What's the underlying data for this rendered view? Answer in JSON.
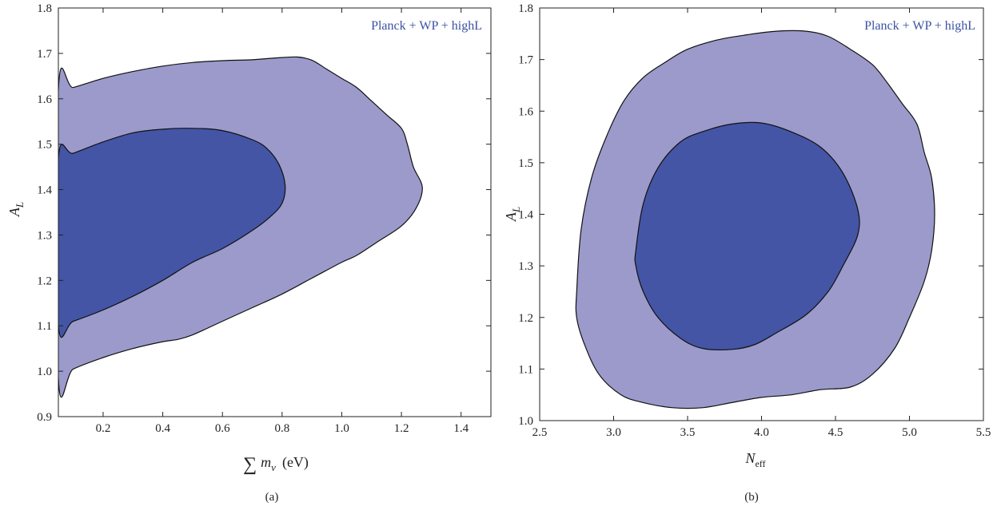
{
  "chart_data": [
    {
      "type": "contour",
      "panel_label": "(a)",
      "legend": "Planck + WP + highL",
      "xlabel": "∑ m_ν (eV)",
      "ylabel": "A_L",
      "xlim": [
        0.05,
        1.5
      ],
      "ylim": [
        0.9,
        1.8
      ],
      "xticks": [
        0.2,
        0.4,
        0.6,
        0.8,
        1.0,
        1.2,
        1.4
      ],
      "yticks": [
        0.9,
        1.0,
        1.1,
        1.2,
        1.3,
        1.4,
        1.5,
        1.6,
        1.7,
        1.8
      ],
      "colors": {
        "outer": "#9b9acb",
        "inner": "#4455a6"
      },
      "regions": [
        {
          "level": "outer",
          "points": [
            [
              0.05,
              1.62
            ],
            [
              0.1,
              1.625
            ],
            [
              0.2,
              1.645
            ],
            [
              0.3,
              1.66
            ],
            [
              0.4,
              1.672
            ],
            [
              0.5,
              1.68
            ],
            [
              0.6,
              1.684
            ],
            [
              0.7,
              1.686
            ],
            [
              0.78,
              1.69
            ],
            [
              0.85,
              1.692
            ],
            [
              0.9,
              1.685
            ],
            [
              0.95,
              1.665
            ],
            [
              1.0,
              1.645
            ],
            [
              1.05,
              1.625
            ],
            [
              1.1,
              1.595
            ],
            [
              1.15,
              1.565
            ],
            [
              1.2,
              1.535
            ],
            [
              1.22,
              1.5
            ],
            [
              1.24,
              1.45
            ],
            [
              1.27,
              1.405
            ],
            [
              1.25,
              1.36
            ],
            [
              1.2,
              1.32
            ],
            [
              1.12,
              1.285
            ],
            [
              1.05,
              1.255
            ],
            [
              1.0,
              1.24
            ],
            [
              0.9,
              1.205
            ],
            [
              0.8,
              1.17
            ],
            [
              0.7,
              1.14
            ],
            [
              0.6,
              1.11
            ],
            [
              0.5,
              1.08
            ],
            [
              0.45,
              1.07
            ],
            [
              0.4,
              1.065
            ],
            [
              0.3,
              1.05
            ],
            [
              0.2,
              1.03
            ],
            [
              0.1,
              1.005
            ],
            [
              0.05,
              0.985
            ]
          ]
        },
        {
          "level": "inner",
          "points": [
            [
              0.05,
              1.47
            ],
            [
              0.1,
              1.48
            ],
            [
              0.2,
              1.505
            ],
            [
              0.3,
              1.525
            ],
            [
              0.4,
              1.533
            ],
            [
              0.5,
              1.535
            ],
            [
              0.6,
              1.53
            ],
            [
              0.7,
              1.51
            ],
            [
              0.75,
              1.49
            ],
            [
              0.79,
              1.455
            ],
            [
              0.81,
              1.41
            ],
            [
              0.8,
              1.37
            ],
            [
              0.76,
              1.34
            ],
            [
              0.7,
              1.31
            ],
            [
              0.6,
              1.27
            ],
            [
              0.5,
              1.24
            ],
            [
              0.4,
              1.2
            ],
            [
              0.3,
              1.165
            ],
            [
              0.2,
              1.135
            ],
            [
              0.1,
              1.11
            ],
            [
              0.05,
              1.1
            ]
          ]
        }
      ]
    },
    {
      "type": "contour",
      "panel_label": "(b)",
      "legend": "Planck + WP + highL",
      "xlabel": "N_eff",
      "ylabel": "A_L",
      "xlim": [
        2.5,
        5.5
      ],
      "ylim": [
        1.0,
        1.8
      ],
      "xticks": [
        2.5,
        3.0,
        3.5,
        4.0,
        4.5,
        5.0,
        5.5
      ],
      "yticks": [
        1.0,
        1.1,
        1.2,
        1.3,
        1.4,
        1.5,
        1.6,
        1.7,
        1.8
      ],
      "colors": {
        "outer": "#9b9acb",
        "inner": "#4455a6"
      },
      "regions": [
        {
          "level": "outer",
          "points": [
            [
              2.75,
              1.25
            ],
            [
              2.78,
              1.37
            ],
            [
              2.85,
              1.47
            ],
            [
              2.95,
              1.55
            ],
            [
              3.07,
              1.62
            ],
            [
              3.2,
              1.665
            ],
            [
              3.35,
              1.695
            ],
            [
              3.5,
              1.72
            ],
            [
              3.7,
              1.738
            ],
            [
              3.9,
              1.748
            ],
            [
              4.1,
              1.755
            ],
            [
              4.3,
              1.755
            ],
            [
              4.45,
              1.745
            ],
            [
              4.6,
              1.72
            ],
            [
              4.75,
              1.69
            ],
            [
              4.85,
              1.655
            ],
            [
              4.95,
              1.615
            ],
            [
              5.05,
              1.575
            ],
            [
              5.1,
              1.52
            ],
            [
              5.15,
              1.47
            ],
            [
              5.17,
              1.4
            ],
            [
              5.15,
              1.33
            ],
            [
              5.1,
              1.27
            ],
            [
              5.0,
              1.2
            ],
            [
              4.9,
              1.14
            ],
            [
              4.75,
              1.09
            ],
            [
              4.6,
              1.065
            ],
            [
              4.4,
              1.06
            ],
            [
              4.2,
              1.05
            ],
            [
              4.0,
              1.045
            ],
            [
              3.8,
              1.035
            ],
            [
              3.6,
              1.025
            ],
            [
              3.4,
              1.025
            ],
            [
              3.2,
              1.035
            ],
            [
              3.05,
              1.05
            ],
            [
              2.9,
              1.09
            ],
            [
              2.8,
              1.15
            ],
            [
              2.75,
              1.2
            ]
          ]
        },
        {
          "level": "inner",
          "points": [
            [
              3.15,
              1.33
            ],
            [
              3.2,
              1.42
            ],
            [
              3.3,
              1.49
            ],
            [
              3.45,
              1.54
            ],
            [
              3.6,
              1.56
            ],
            [
              3.8,
              1.575
            ],
            [
              4.0,
              1.577
            ],
            [
              4.2,
              1.56
            ],
            [
              4.4,
              1.53
            ],
            [
              4.55,
              1.48
            ],
            [
              4.65,
              1.41
            ],
            [
              4.65,
              1.36
            ],
            [
              4.55,
              1.3
            ],
            [
              4.45,
              1.25
            ],
            [
              4.3,
              1.205
            ],
            [
              4.1,
              1.17
            ],
            [
              3.95,
              1.147
            ],
            [
              3.8,
              1.138
            ],
            [
              3.6,
              1.14
            ],
            [
              3.45,
              1.16
            ],
            [
              3.3,
              1.2
            ],
            [
              3.2,
              1.25
            ],
            [
              3.15,
              1.3
            ]
          ]
        }
      ]
    }
  ]
}
